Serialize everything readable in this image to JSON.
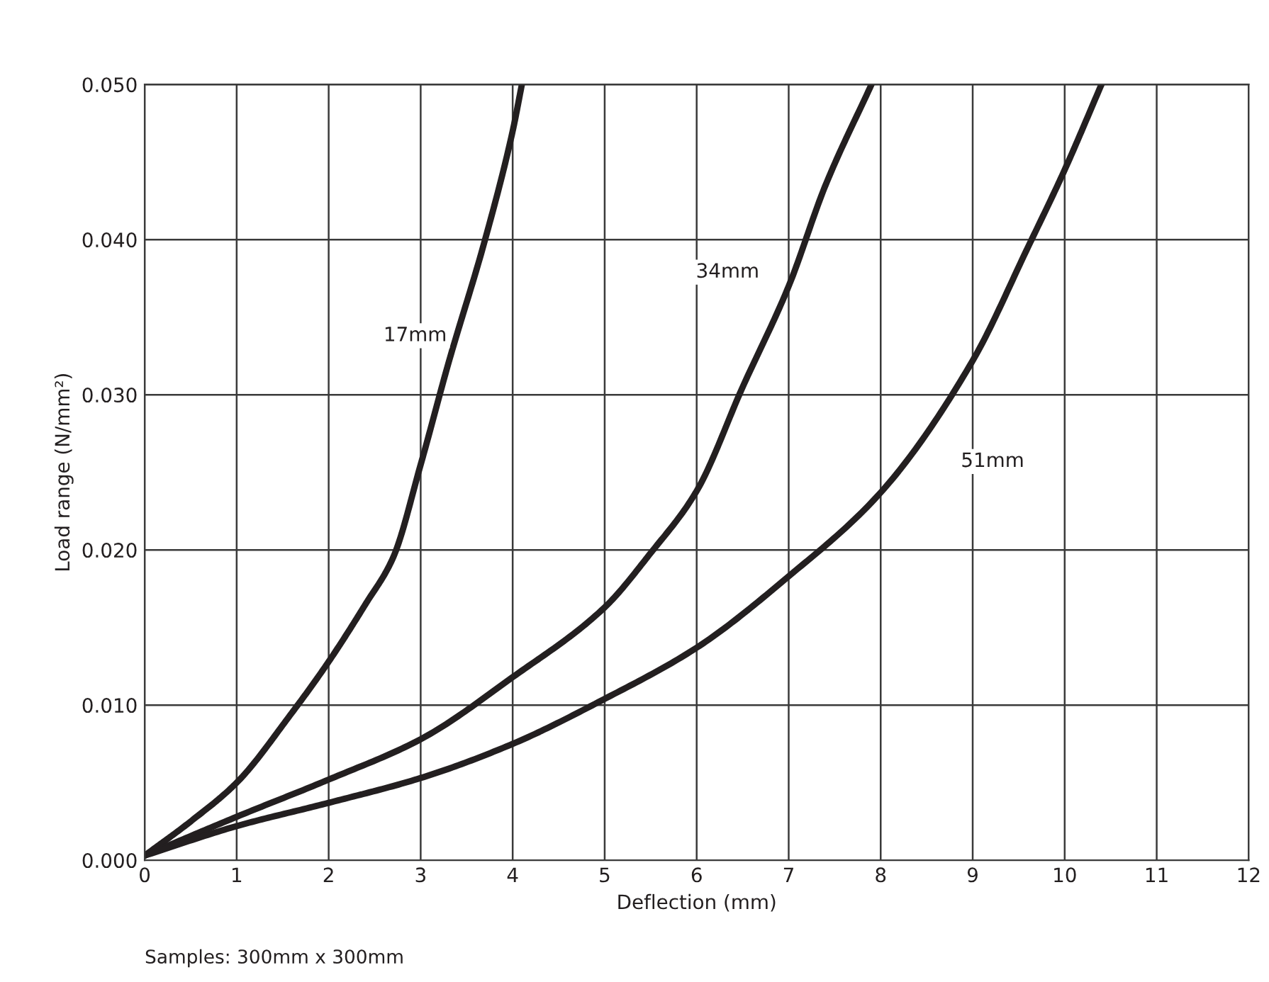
{
  "chart_data": {
    "type": "line",
    "xlabel": "Deflection (mm)",
    "ylabel": "Load range (N/mm²)",
    "xlim": [
      0,
      12
    ],
    "xticks": [
      0,
      1,
      2,
      3,
      4,
      5,
      6,
      7,
      8,
      9,
      10,
      11,
      12
    ],
    "ylim": [
      0,
      0.05
    ],
    "yticks": [
      {
        "value": 0,
        "label": "0.000"
      },
      {
        "value": 0.01,
        "label": "0.010"
      },
      {
        "value": 0.02,
        "label": "0.020"
      },
      {
        "value": 0.03,
        "label": "0.030"
      },
      {
        "value": 0.04,
        "label": "0.040"
      },
      {
        "value": 0.05,
        "label": "0.050"
      }
    ],
    "grid": true,
    "legend": false,
    "marker": "none",
    "line_style": "solid",
    "series": [
      {
        "name": "17mm",
        "color": "#231f20",
        "x": [
          0,
          0.5,
          1,
          1.6,
          2,
          2.4,
          2.7,
          3,
          3.3,
          3.7,
          4,
          4.1
        ],
        "values": [
          0.0003,
          0.0025,
          0.005,
          0.0095,
          0.0128,
          0.0165,
          0.0195,
          0.0255,
          0.032,
          0.04,
          0.047,
          0.05
        ]
      },
      {
        "name": "34mm",
        "color": "#231f20",
        "x": [
          0,
          1,
          2,
          3,
          4,
          5,
          5.5,
          6,
          6.5,
          7,
          7.4,
          7.9
        ],
        "values": [
          0.0003,
          0.0028,
          0.0052,
          0.0078,
          0.0118,
          0.0163,
          0.0198,
          0.0238,
          0.0305,
          0.037,
          0.0435,
          0.05
        ]
      },
      {
        "name": "51mm",
        "color": "#231f20",
        "x": [
          0,
          1,
          2,
          3,
          4,
          5,
          6,
          7,
          8,
          9,
          9.6,
          10,
          10.4
        ],
        "values": [
          0.0003,
          0.0022,
          0.0037,
          0.0053,
          0.0075,
          0.0104,
          0.0137,
          0.0183,
          0.0237,
          0.0322,
          0.0395,
          0.0445,
          0.05
        ]
      }
    ],
    "annotations": [
      "Samples: 300mm x 300mm"
    ]
  }
}
